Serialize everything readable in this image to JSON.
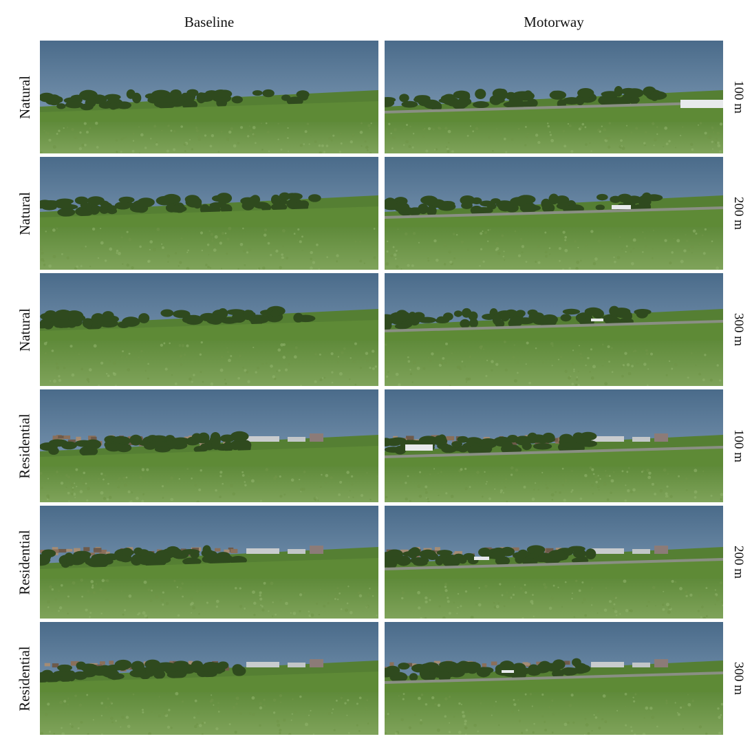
{
  "columns": [
    "Baseline",
    "Motorway"
  ],
  "rows": [
    {
      "type": "Natural",
      "distance": "100 m"
    },
    {
      "type": "Natural",
      "distance": "200 m"
    },
    {
      "type": "Natural",
      "distance": "300 m"
    },
    {
      "type": "Residential",
      "distance": "100 m"
    },
    {
      "type": "Residential",
      "distance": "200 m"
    },
    {
      "type": "Residential",
      "distance": "300 m"
    }
  ],
  "colors": {
    "sky_top": "#4a6b8a",
    "sky_bottom": "#8fa9c2",
    "field_far": "#5f8a3a",
    "field_near": "#7fa35a",
    "trees": "#2f4a1e",
    "road": "#8a8f84"
  }
}
